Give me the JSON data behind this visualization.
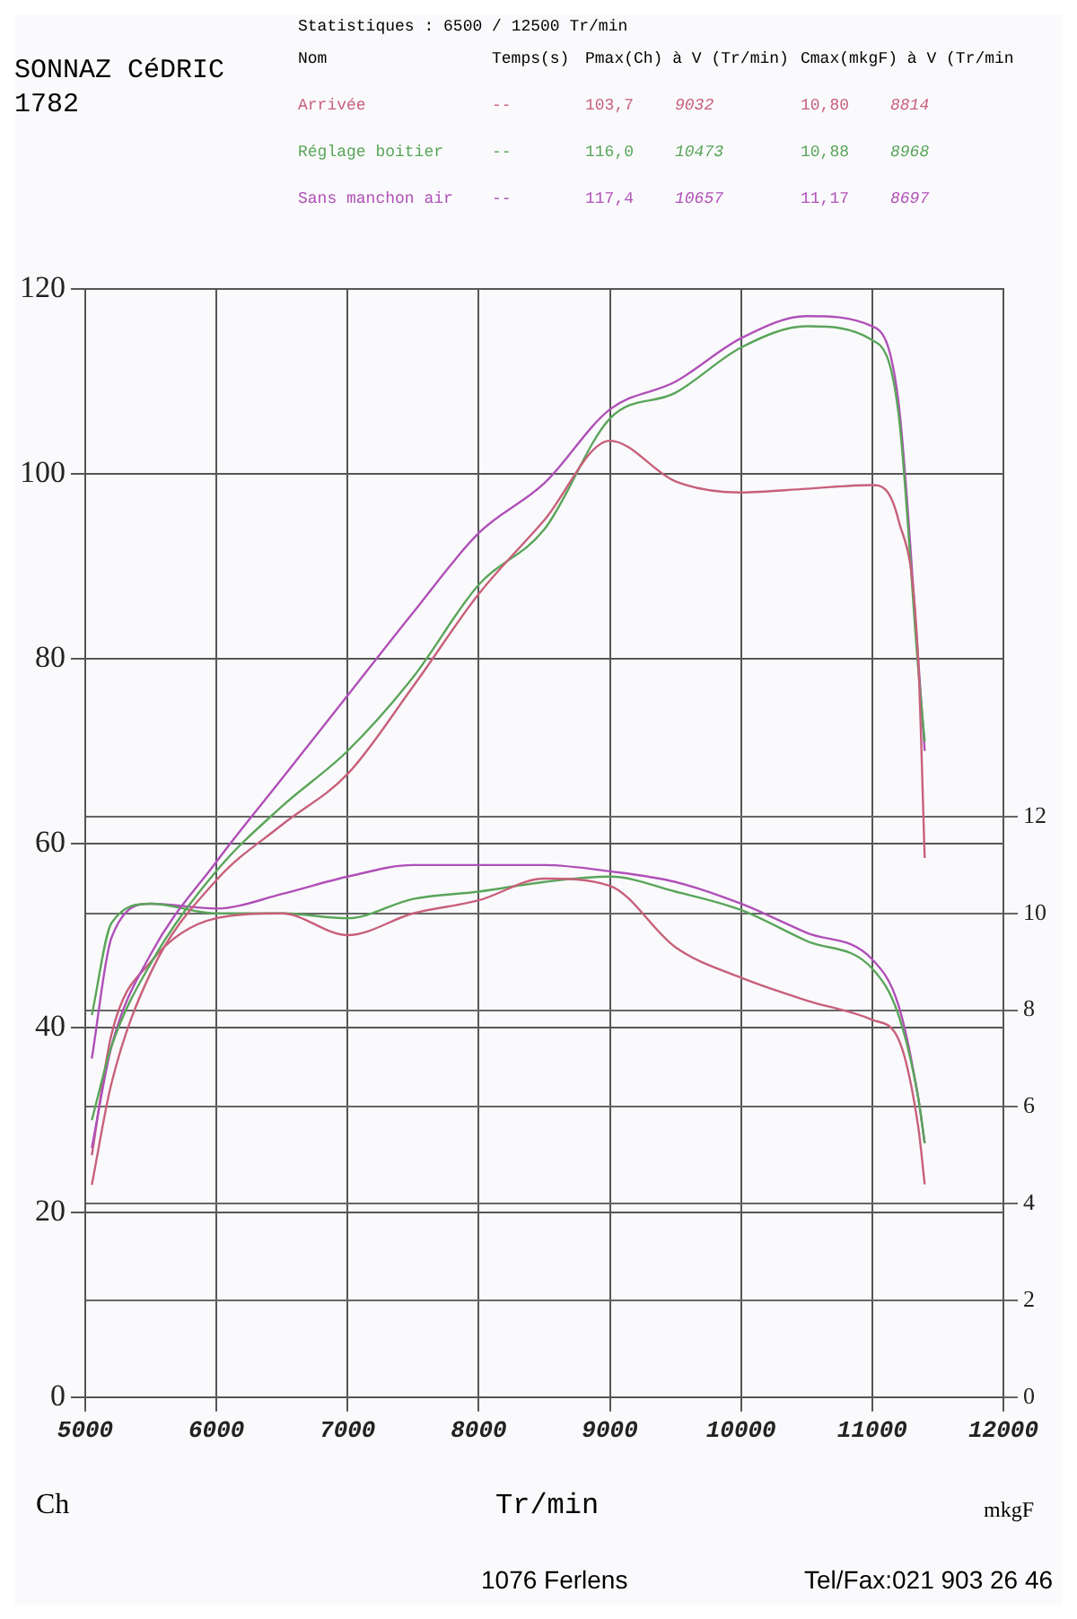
{
  "chart_data": {
    "type": "line",
    "xlabel": "Tr/min",
    "ylabel": "Ch",
    "y2label": "mkgF",
    "annotations": [
      "Statistiques : 6500 / 12500 Tr/min",
      "Nom",
      "Temps(s)",
      "Pmax(Ch) à V (Tr/min)",
      "Cmax(mkgF) à V (Tr/min",
      "--",
      "103,7",
      "9032",
      "10,80",
      "8814",
      "--",
      "116,0",
      "10473",
      "10,88",
      "8968",
      "--",
      "117,4",
      "10657",
      "11,17",
      "8697",
      "SONNAZ CéDRIC",
      "1782",
      "1076 Ferlens",
      "Tel/Fax:021 903 26 46"
    ],
    "x": [
      5050,
      5200,
      5500,
      6000,
      6500,
      7000,
      7500,
      8000,
      8500,
      9000,
      9500,
      10000,
      10500,
      11000,
      11200,
      11350,
      11400
    ],
    "series": [
      {
        "name": "Arrivée",
        "color": "#c8607a",
        "values": [
          23,
          34,
          46,
          56,
          62,
          67.5,
          77,
          87,
          95,
          103.6,
          99.2,
          98,
          98.4,
          98.8,
          95,
          80,
          58.4
        ]
      },
      {
        "name": "Réglage boitier",
        "color": "#5aa55a",
        "values": [
          30,
          38,
          47,
          57,
          64,
          70,
          78,
          88,
          94,
          106,
          108.8,
          113.7,
          116,
          114.5,
          106.6,
          79,
          71
        ]
      },
      {
        "name": "Sans manchon air",
        "color": "#b050b8",
        "values": [
          27,
          38,
          48,
          58,
          67,
          76,
          85,
          93.6,
          99,
          107,
          110,
          114.7,
          117.1,
          116,
          107.8,
          80,
          70
        ]
      },
      {
        "color": "#c8607a",
        "axis": "y2",
        "values": [
          5.0,
          7.5,
          9.0,
          9.9,
          10.0,
          9.55,
          10.0,
          10.27,
          10.72,
          10.57,
          9.3,
          8.67,
          8.2,
          7.8,
          7.4,
          5.6,
          4.4
        ]
      },
      {
        "color": "#5aa55a",
        "axis": "y2",
        "values": [
          7.9,
          9.8,
          10.2,
          10.0,
          10.0,
          9.9,
          10.3,
          10.45,
          10.65,
          10.76,
          10.45,
          10.07,
          9.43,
          8.86,
          7.9,
          6.2,
          5.25
        ]
      },
      {
        "color": "#b050b8",
        "axis": "y2",
        "values": [
          7.0,
          9.5,
          10.2,
          10.1,
          10.4,
          10.76,
          11.0,
          11.0,
          11.0,
          10.87,
          10.65,
          10.2,
          9.6,
          9.05,
          8.1,
          6.2,
          5.25
        ]
      }
    ],
    "xlim": [
      5000,
      12000
    ],
    "xticks": [
      5000,
      6000,
      7000,
      8000,
      9000,
      10000,
      11000,
      12000
    ],
    "ylim": [
      0,
      120
    ],
    "yticks": [
      0,
      20,
      40,
      60,
      80,
      100,
      120
    ],
    "y2lim": [
      0,
      22.9
    ],
    "y2ticks": [
      0,
      2,
      4,
      6,
      8,
      10,
      12
    ],
    "grid": true,
    "legend": false,
    "marker": "none",
    "line_style": "solid"
  }
}
